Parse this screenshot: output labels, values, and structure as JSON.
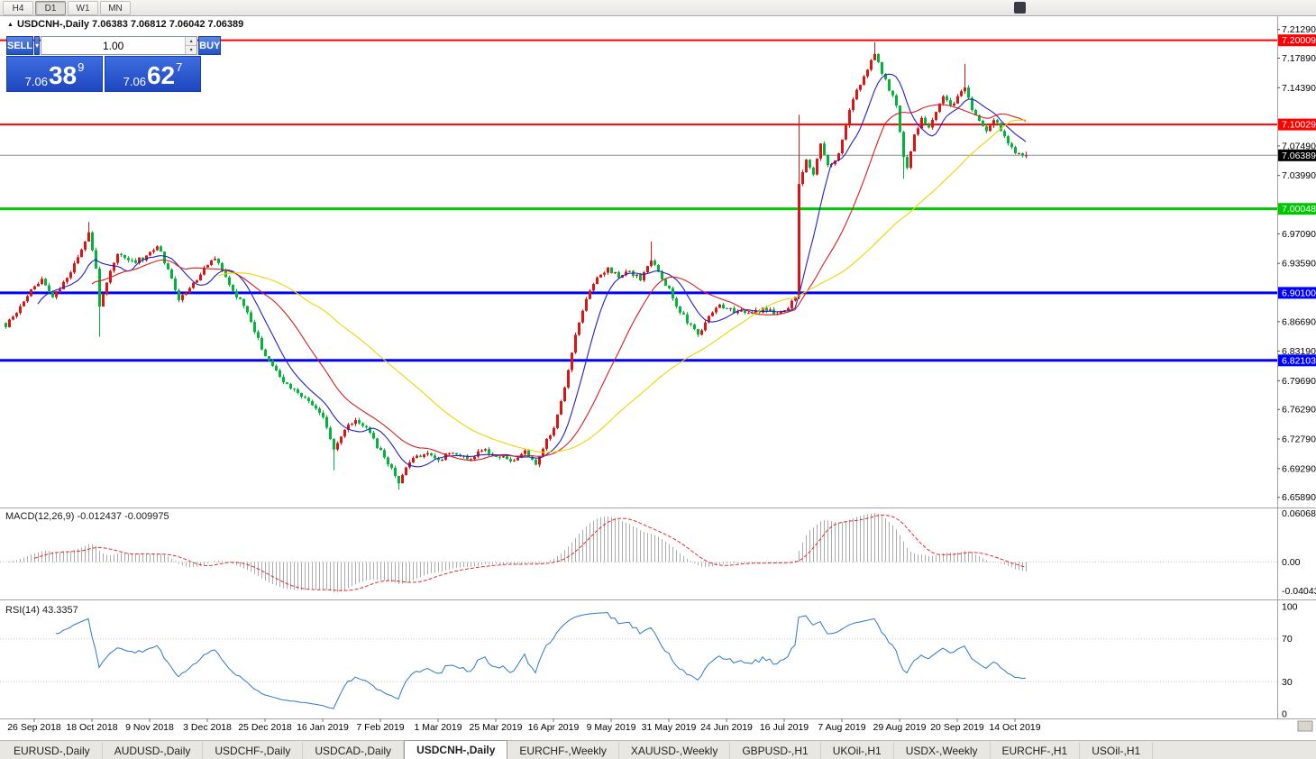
{
  "toolbar": {
    "timeframes": [
      {
        "label": "H4",
        "active": false
      },
      {
        "label": "D1",
        "active": true
      },
      {
        "label": "W1",
        "active": false
      },
      {
        "label": "MN",
        "active": false
      }
    ]
  },
  "trade_panel": {
    "sell_label": "SELL",
    "buy_label": "BUY",
    "volume": "1.00",
    "sell_price": {
      "prefix": "7.06",
      "big": "38",
      "sup": "9"
    },
    "buy_price": {
      "prefix": "7.06",
      "big": "62",
      "sup": "7"
    }
  },
  "chart_data": {
    "type": "candlestick",
    "symbol": "USDCNH-",
    "timeframe": "Daily",
    "title_line": "USDCNH-,Daily 7.06383 7.06812 7.06042 7.06389",
    "ohlc": {
      "open": 7.06383,
      "high": 7.06812,
      "low": 7.06042,
      "close": 7.06389
    },
    "bars": 284,
    "price_range": {
      "max": 7.22,
      "min": 6.65
    },
    "close_waypoints": [
      [
        0,
        6.862
      ],
      [
        3,
        6.878
      ],
      [
        7,
        6.905
      ],
      [
        10,
        6.918
      ],
      [
        13,
        6.897
      ],
      [
        17,
        6.916
      ],
      [
        21,
        6.952
      ],
      [
        23,
        6.972
      ],
      [
        25,
        6.93
      ],
      [
        26,
        6.885
      ],
      [
        29,
        6.928
      ],
      [
        31,
        6.948
      ],
      [
        35,
        6.937
      ],
      [
        39,
        6.944
      ],
      [
        42,
        6.956
      ],
      [
        45,
        6.93
      ],
      [
        48,
        6.892
      ],
      [
        50,
        6.902
      ],
      [
        54,
        6.923
      ],
      [
        58,
        6.944
      ],
      [
        61,
        6.92
      ],
      [
        64,
        6.897
      ],
      [
        67,
        6.88
      ],
      [
        70,
        6.845
      ],
      [
        73,
        6.82
      ],
      [
        76,
        6.8
      ],
      [
        79,
        6.79
      ],
      [
        82,
        6.778
      ],
      [
        85,
        6.77
      ],
      [
        88,
        6.755
      ],
      [
        91,
        6.715
      ],
      [
        94,
        6.738
      ],
      [
        97,
        6.752
      ],
      [
        100,
        6.742
      ],
      [
        103,
        6.72
      ],
      [
        106,
        6.698
      ],
      [
        109,
        6.678
      ],
      [
        112,
        6.7
      ],
      [
        116,
        6.712
      ],
      [
        120,
        6.704
      ],
      [
        124,
        6.712
      ],
      [
        128,
        6.704
      ],
      [
        132,
        6.715
      ],
      [
        136,
        6.709
      ],
      [
        140,
        6.702
      ],
      [
        144,
        6.712
      ],
      [
        147,
        6.7
      ],
      [
        150,
        6.726
      ],
      [
        152,
        6.741
      ],
      [
        155,
        6.788
      ],
      [
        158,
        6.852
      ],
      [
        161,
        6.893
      ],
      [
        164,
        6.918
      ],
      [
        167,
        6.929
      ],
      [
        170,
        6.921
      ],
      [
        173,
        6.927
      ],
      [
        176,
        6.917
      ],
      [
        179,
        6.938
      ],
      [
        181,
        6.927
      ],
      [
        184,
        6.904
      ],
      [
        187,
        6.879
      ],
      [
        190,
        6.861
      ],
      [
        192,
        6.851
      ],
      [
        195,
        6.876
      ],
      [
        198,
        6.887
      ],
      [
        202,
        6.879
      ],
      [
        206,
        6.877
      ],
      [
        210,
        6.881
      ],
      [
        214,
        6.877
      ],
      [
        217,
        6.884
      ],
      [
        219,
        6.898
      ],
      [
        220,
        7.03
      ],
      [
        222,
        7.058
      ],
      [
        224,
        7.042
      ],
      [
        226,
        7.078
      ],
      [
        228,
        7.052
      ],
      [
        231,
        7.064
      ],
      [
        234,
        7.118
      ],
      [
        236,
        7.142
      ],
      [
        238,
        7.158
      ],
      [
        241,
        7.186
      ],
      [
        243,
        7.163
      ],
      [
        245,
        7.143
      ],
      [
        247,
        7.122
      ],
      [
        249,
        7.062
      ],
      [
        250,
        7.05
      ],
      [
        252,
        7.088
      ],
      [
        254,
        7.108
      ],
      [
        256,
        7.098
      ],
      [
        258,
        7.118
      ],
      [
        260,
        7.132
      ],
      [
        262,
        7.122
      ],
      [
        264,
        7.133
      ],
      [
        266,
        7.146
      ],
      [
        268,
        7.118
      ],
      [
        270,
        7.103
      ],
      [
        272,
        7.094
      ],
      [
        274,
        7.108
      ],
      [
        276,
        7.094
      ],
      [
        278,
        7.079
      ],
      [
        280,
        7.069
      ],
      [
        282,
        7.063
      ],
      [
        283,
        7.06389
      ]
    ],
    "spikes": [
      {
        "bar": 23,
        "high": 6.985
      },
      {
        "bar": 26,
        "low": 6.849
      },
      {
        "bar": 91,
        "low": 6.691
      },
      {
        "bar": 109,
        "low": 6.668
      },
      {
        "bar": 179,
        "high": 6.962
      },
      {
        "bar": 220,
        "high": 7.112,
        "low": 6.916
      },
      {
        "bar": 241,
        "high": 7.198
      },
      {
        "bar": 249,
        "low": 7.036
      },
      {
        "bar": 266,
        "high": 7.172
      }
    ],
    "last_bar": {
      "open": 7.06383,
      "high": 7.06812,
      "low": 7.06042,
      "close": 7.06389
    },
    "colors": {
      "up": "#dc1414",
      "down": "#00b43c",
      "ma_fast": "#2020c8",
      "ma_mid": "#d42020",
      "ma_slow": "#ecd600",
      "macd_hist": "#ababab",
      "macd_signal": "#e03030",
      "rsi": "#2e78c8"
    },
    "moving_averages": [
      {
        "period": 10,
        "color_key": "ma_fast"
      },
      {
        "period": 25,
        "color_key": "ma_mid"
      },
      {
        "period": 60,
        "color_key": "ma_slow"
      }
    ],
    "levels": [
      {
        "price": 7.20009,
        "label": "7.20009",
        "color": "#ff0000",
        "width": 2
      },
      {
        "price": 7.10029,
        "label": "7.10029",
        "color": "#ff0000",
        "width": 2
      },
      {
        "price": 7.00048,
        "label": "7.00048",
        "color": "#00c800",
        "width": 3
      },
      {
        "price": 6.901,
        "label": "6.90100",
        "color": "#0000ff",
        "width": 3
      },
      {
        "price": 6.82103,
        "label": "6.82103",
        "color": "#0000ff",
        "width": 3
      }
    ],
    "current_price": {
      "value": 7.06389,
      "label": "7.06389"
    },
    "price_axis_ticks": [
      "7.21290",
      "7.17890",
      "7.14390",
      "7.07490",
      "7.03990",
      "6.97090",
      "6.93590",
      "6.86690",
      "6.83190",
      "6.79690",
      "6.76290",
      "6.72790",
      "6.69290",
      "6.65890"
    ],
    "x_axis": {
      "labels": [
        "26 Sep 2018",
        "18 Oct 2018",
        "9 Nov 2018",
        "3 Dec 2018",
        "25 Dec 2018",
        "16 Jan 2019",
        "7 Feb 2019",
        "1 Mar 2019",
        "25 Mar 2019",
        "16 Apr 2019",
        "9 May 2019",
        "31 May 2019",
        "24 Jun 2019",
        "16 Jul 2019",
        "7 Aug 2019",
        "29 Aug 2019",
        "20 Sep 2019",
        "14 Oct 2019"
      ]
    },
    "macd": {
      "label": "MACD(12,26,9) -0.012437 -0.009975",
      "params": [
        12,
        26,
        9
      ],
      "value": -0.012437,
      "signal_value": -0.009975,
      "axis": {
        "max": "0.060687",
        "zero": "0.00",
        "min": "-0.040432"
      }
    },
    "rsi": {
      "label": "RSI(14) 43.3357",
      "period": 14,
      "value": 43.3357,
      "levels": [
        70,
        30
      ],
      "axis": [
        "100",
        "70",
        "30",
        "0"
      ]
    }
  },
  "bottom_tabs": {
    "active": "USDCNH-,Daily",
    "items": [
      "EURUSD-,Daily",
      "AUDUSD-,Daily",
      "USDCHF-,Daily",
      "USDCAD-,Daily",
      "USDCNH-,Daily",
      "EURCHF-,Weekly",
      "XAUUSD-,Weekly",
      "GBPUSD-,H1",
      "UKOil-,H1",
      "USDX-,Weekly",
      "EURCHF-,H1",
      "USOil-,H1"
    ]
  }
}
